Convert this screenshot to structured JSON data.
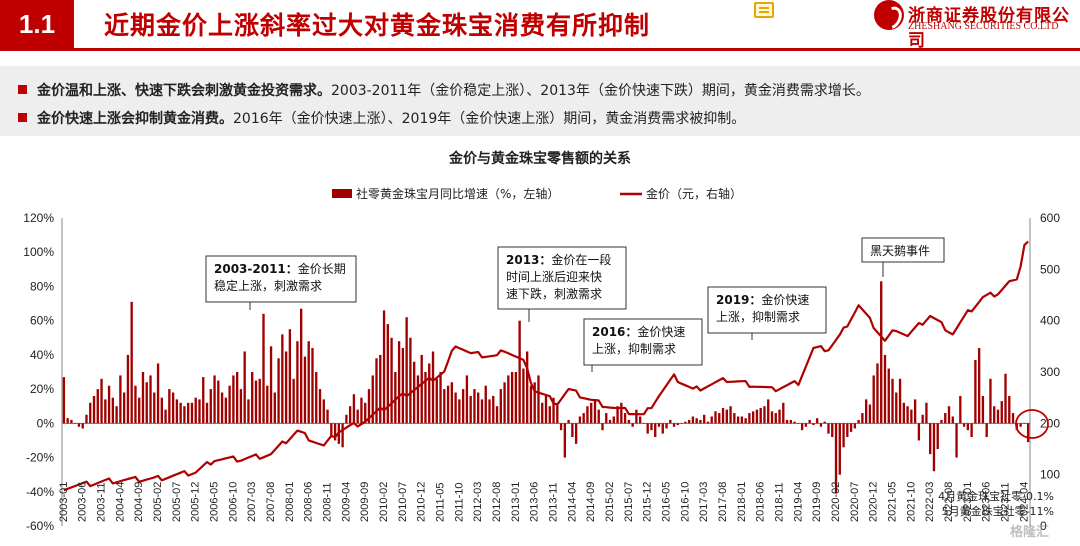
{
  "header": {
    "section_number": "1.1",
    "title": "近期金价上涨斜率过大对黄金珠宝消费有所抑制",
    "logo_cn": "浙商证券股份有限公司",
    "logo_en": "ZHESHANG SECURITIES CO.LTD"
  },
  "bullets": [
    {
      "bold": "金价温和上涨、快速下跌会刺激黄金投资需求。",
      "text": "2003-2011年（金价稳定上涨）、2013年（金价快速下跌）期间，黄金消费需求增长。"
    },
    {
      "bold": "金价快速上涨会抑制黄金消费。",
      "text": "2016年（金价快速上涨）、2019年（金价快速上涨）期间，黄金消费需求被抑制。"
    }
  ],
  "watermark": "格隆汇",
  "chart_data": {
    "type": "bar+line",
    "title": "金价与黄金珠宝零售额的关系",
    "legend": [
      {
        "name": "社零黄金珠宝月同比增速（%，左轴）",
        "kind": "bar",
        "color": "#a00000"
      },
      {
        "name": "金价（元，右轴）",
        "kind": "line",
        "color": "#b00000"
      }
    ],
    "y_left": {
      "min": -60,
      "max": 120,
      "step": 20,
      "unit": "%",
      "ticks": [
        "-60%",
        "-40%",
        "-20%",
        "0%",
        "20%",
        "40%",
        "60%",
        "80%",
        "100%",
        "120%"
      ]
    },
    "y_right": {
      "min": 0,
      "max": 600,
      "step": 100,
      "ticks": [
        "0",
        "100",
        "200",
        "300",
        "400",
        "500",
        "600"
      ]
    },
    "x_ticks": [
      "2003-01",
      "2003-06",
      "2003-11",
      "2004-04",
      "2004-09",
      "2005-02",
      "2005-07",
      "2005-12",
      "2006-05",
      "2006-10",
      "2007-03",
      "2007-08",
      "2008-01",
      "2008-06",
      "2008-11",
      "2009-04",
      "2009-09",
      "2010-02",
      "2010-07",
      "2010-12",
      "2011-05",
      "2011-10",
      "2012-03",
      "2012-08",
      "2013-01",
      "2013-06",
      "2013-11",
      "2014-04",
      "2014-09",
      "2015-02",
      "2015-07",
      "2015-12",
      "2016-05",
      "2016-10",
      "2017-03",
      "2017-08",
      "2018-01",
      "2018-06",
      "2018-11",
      "2019-04",
      "2019-09",
      "2020-02",
      "2020-07",
      "2020-12",
      "2021-05",
      "2021-10",
      "2022-03",
      "2022-08",
      "2023-01",
      "2023-06",
      "2023-11",
      "2024-04"
    ],
    "period": {
      "start": "2003-01",
      "end": "2024-05"
    },
    "gold_price_anchors": [
      [
        "2003-01",
        75
      ],
      [
        "2003-06",
        80
      ],
      [
        "2004-01",
        88
      ],
      [
        "2005-01",
        92
      ],
      [
        "2005-12",
        105
      ],
      [
        "2006-05",
        130
      ],
      [
        "2006-12",
        130
      ],
      [
        "2007-08",
        140
      ],
      [
        "2008-03",
        185
      ],
      [
        "2008-10",
        155
      ],
      [
        "2009-02",
        185
      ],
      [
        "2009-09",
        205
      ],
      [
        "2010-06",
        250
      ],
      [
        "2010-12",
        275
      ],
      [
        "2011-06",
        300
      ],
      [
        "2011-09",
        355
      ],
      [
        "2012-01",
        335
      ],
      [
        "2012-08",
        330
      ],
      [
        "2012-10",
        345
      ],
      [
        "2013-03",
        320
      ],
      [
        "2013-06",
        265
      ],
      [
        "2013-12",
        240
      ],
      [
        "2014-03",
        265
      ],
      [
        "2014-09",
        245
      ],
      [
        "2015-03",
        230
      ],
      [
        "2015-11",
        215
      ],
      [
        "2016-03",
        255
      ],
      [
        "2016-07",
        290
      ],
      [
        "2016-12",
        265
      ],
      [
        "2017-09",
        285
      ],
      [
        "2018-04",
        275
      ],
      [
        "2018-09",
        265
      ],
      [
        "2019-04",
        280
      ],
      [
        "2019-08",
        345
      ],
      [
        "2019-12",
        345
      ],
      [
        "2020-03",
        370
      ],
      [
        "2020-08",
        430
      ],
      [
        "2020-12",
        390
      ],
      [
        "2021-03",
        360
      ],
      [
        "2021-06",
        385
      ],
      [
        "2021-09",
        370
      ],
      [
        "2022-03",
        410
      ],
      [
        "2022-09",
        375
      ],
      [
        "2023-01",
        415
      ],
      [
        "2023-05",
        445
      ],
      [
        "2023-09",
        455
      ],
      [
        "2023-12",
        475
      ],
      [
        "2024-02",
        475
      ],
      [
        "2024-03",
        510
      ],
      [
        "2024-04",
        550
      ],
      [
        "2024-05",
        555
      ]
    ],
    "retail_yoy_note": "Monthly YoY bars estimated from the figure; 2021-02 peak ~83%, 2020-02 trough ~-41%.",
    "callouts": [
      {
        "lines": [
          "2003-2011：金价长期",
          "稳定上涨，刺激需求"
        ],
        "bold_prefix": "2003-2011："
      },
      {
        "lines": [
          "2013：金价在一段",
          "时间上涨后迎来快",
          "速下跌，刺激需求"
        ],
        "bold_prefix": "2013："
      },
      {
        "lines": [
          "2016：金价快速",
          "上涨，抑制需求"
        ],
        "bold_prefix": "2016："
      },
      {
        "lines": [
          "2019：金价快速",
          "上涨，抑制需求"
        ],
        "bold_prefix": "2019："
      },
      {
        "lines": [
          "黑天鹅事件"
        ],
        "bold_prefix": ""
      }
    ],
    "notes": [
      "4月黄金珠宝社零-0.1%",
      "5月黄金珠宝社零-11%"
    ]
  }
}
